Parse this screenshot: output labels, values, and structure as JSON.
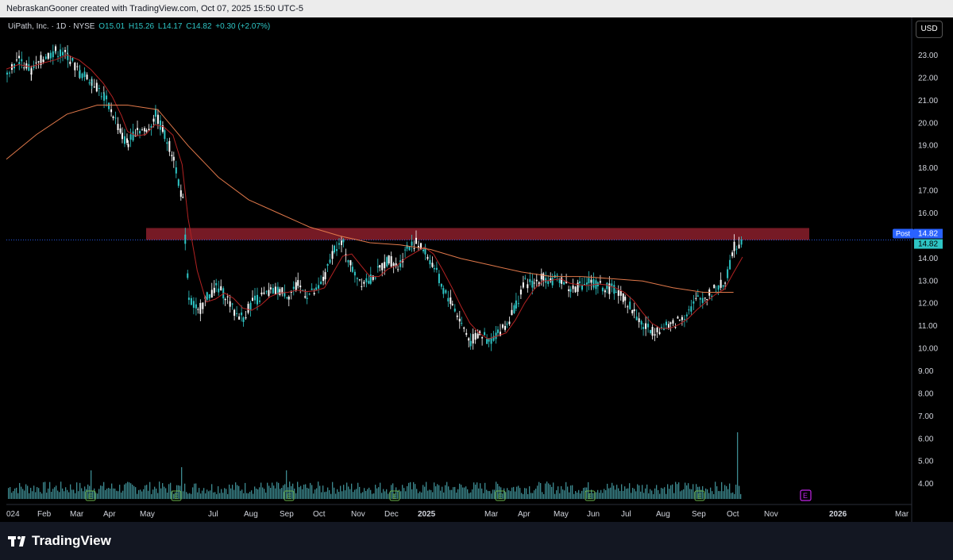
{
  "header": {
    "attribution": "NebraskanGooner created with TradingView.com, Oct 07, 2025 15:50 UTC-5"
  },
  "legend": {
    "symbol": "UiPath, Inc. · 1D · NYSE",
    "open": "O15.01",
    "high": "H15.26",
    "low": "L14.17",
    "close": "C14.82",
    "change": "+0.30 (+2.07%)"
  },
  "currency_button": "USD",
  "footer": {
    "brand": "TradingView"
  },
  "price_labels": {
    "post_tag": "Post",
    "post_value": "14.82",
    "last_value": "14.82"
  },
  "colors": {
    "up": "#2ec5c5",
    "down": "#ffffff",
    "ma_long": "#e0784a",
    "ma_short": "#b22222",
    "zone": "#8b1e2b",
    "volume": "#3d8a90",
    "earnings": "#6ab04c",
    "upcoming_earnings": "#c025e6"
  },
  "icons": {
    "earnings_marker": "earnings-e-icon",
    "logo": "tradingview-logo-icon"
  },
  "chart_data": {
    "type": "candlestick",
    "title": "",
    "y_ticks": [
      "23.00",
      "22.00",
      "21.00",
      "20.00",
      "19.00",
      "18.00",
      "17.00",
      "16.00",
      "15.00",
      "14.00",
      "13.00",
      "12.00",
      "11.00",
      "10.00",
      "9.00",
      "8.00",
      "7.00",
      "6.00",
      "5.00",
      "4.00"
    ],
    "x_ticks": [
      "024",
      "Feb",
      "Mar",
      "Apr",
      "May",
      "Jul",
      "Aug",
      "Sep",
      "Oct",
      "Nov",
      "Dec",
      "2025",
      "Mar",
      "Apr",
      "May",
      "Jun",
      "Jul",
      "Aug",
      "Sep",
      "Oct",
      "Nov",
      "2026",
      "Mar"
    ],
    "bold_x_ticks": [
      "2025",
      "2026"
    ],
    "price_points": [
      [
        0,
        22.4
      ],
      [
        0.4,
        22.8
      ],
      [
        0.8,
        22.3
      ],
      [
        1.2,
        22.9
      ],
      [
        1.6,
        23.2
      ],
      [
        2.0,
        23.0
      ],
      [
        2.4,
        22.2
      ],
      [
        2.8,
        21.9
      ],
      [
        3.2,
        21.2
      ],
      [
        3.5,
        20.4
      ],
      [
        3.8,
        19.4
      ],
      [
        4.0,
        19.1
      ],
      [
        4.3,
        19.8
      ],
      [
        4.6,
        19.6
      ],
      [
        4.9,
        20.4
      ],
      [
        5.2,
        19.5
      ],
      [
        5.5,
        18.5
      ],
      [
        5.8,
        16.5
      ],
      [
        6.0,
        12.3
      ],
      [
        6.3,
        11.6
      ],
      [
        6.6,
        12.3
      ],
      [
        6.9,
        12.7
      ],
      [
        7.2,
        12.4
      ],
      [
        7.5,
        11.6
      ],
      [
        7.8,
        11.4
      ],
      [
        8.1,
        12.1
      ],
      [
        8.4,
        12.3
      ],
      [
        8.7,
        12.5
      ],
      [
        9.0,
        12.6
      ],
      [
        9.3,
        12.4
      ],
      [
        9.6,
        12.8
      ],
      [
        9.9,
        12.4
      ],
      [
        10.2,
        12.5
      ],
      [
        10.5,
        13.2
      ],
      [
        10.8,
        14.5
      ],
      [
        11.1,
        14.6
      ],
      [
        11.4,
        13.5
      ],
      [
        11.7,
        13.0
      ],
      [
        12.0,
        13.1
      ],
      [
        12.3,
        13.5
      ],
      [
        12.6,
        14.0
      ],
      [
        12.9,
        13.6
      ],
      [
        13.2,
        14.5
      ],
      [
        13.5,
        14.7
      ],
      [
        13.8,
        14.3
      ],
      [
        14.1,
        13.6
      ],
      [
        14.4,
        12.6
      ],
      [
        14.7,
        12.0
      ],
      [
        15.0,
        11.1
      ],
      [
        15.3,
        10.3
      ],
      [
        15.6,
        10.7
      ],
      [
        15.9,
        10.3
      ],
      [
        16.2,
        10.7
      ],
      [
        16.5,
        11.1
      ],
      [
        16.8,
        12.0
      ],
      [
        17.1,
        12.9
      ],
      [
        17.4,
        12.9
      ],
      [
        17.7,
        13.2
      ],
      [
        18.0,
        13.0
      ],
      [
        18.3,
        13.1
      ],
      [
        18.6,
        12.6
      ],
      [
        18.9,
        12.8
      ],
      [
        19.2,
        13.0
      ],
      [
        19.5,
        12.8
      ],
      [
        19.8,
        12.7
      ],
      [
        20.1,
        12.6
      ],
      [
        20.4,
        12.2
      ],
      [
        20.7,
        11.6
      ],
      [
        21.0,
        11.0
      ],
      [
        21.3,
        10.8
      ],
      [
        21.6,
        10.9
      ],
      [
        21.9,
        11.0
      ],
      [
        22.2,
        11.3
      ],
      [
        22.5,
        11.7
      ],
      [
        22.8,
        12.2
      ],
      [
        23.1,
        12.3
      ],
      [
        23.4,
        12.7
      ],
      [
        23.7,
        12.9
      ],
      [
        24.0,
        14.5
      ],
      [
        24.3,
        14.8
      ]
    ],
    "resistance_zone": {
      "low": 14.82,
      "high": 15.35
    },
    "volume_scale_ticks": [
      "8.00",
      "7.00",
      "6.00",
      "5.00",
      "4.00"
    ],
    "ylim": [
      3.0,
      24.0
    ],
    "last_price": 14.82
  }
}
